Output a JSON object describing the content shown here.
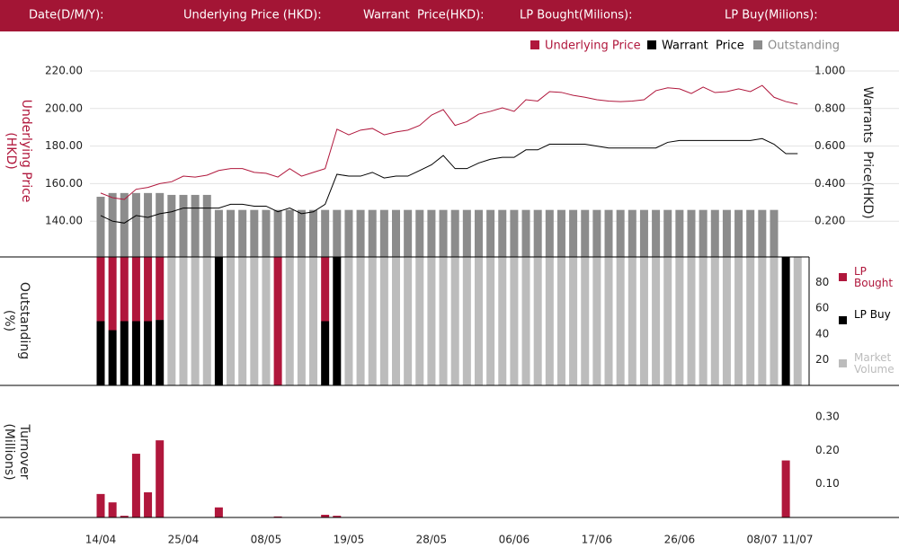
{
  "header": {
    "fields": [
      "Date(D/M/Y):",
      "Underlying Price (HKD):",
      "Warrant  Price(HKD):",
      "LP Bought(Milions):",
      "LP Buy(Milions):"
    ]
  },
  "chart_data": [
    {
      "type": "line",
      "ylabel": "Underlying Price (HKD)",
      "y2label": "Warrants  Price(HKD)",
      "ylim": [
        120,
        220
      ],
      "yticks": [
        {
          "value": 140,
          "label": "140.00"
        },
        {
          "value": 160,
          "label": "160.00"
        },
        {
          "value": 180,
          "label": "180.00"
        },
        {
          "value": 200,
          "label": "200.00"
        },
        {
          "value": 220,
          "label": "220.00"
        }
      ],
      "y2lim": [
        0,
        1
      ],
      "y2ticks": [
        {
          "value": 0.2,
          "label": "0.200"
        },
        {
          "value": 0.4,
          "label": "0.400"
        },
        {
          "value": 0.6,
          "label": "0.600"
        },
        {
          "value": 0.8,
          "label": "0.800"
        },
        {
          "value": 1,
          "label": "1.000"
        }
      ],
      "grid": true,
      "series": [
        {
          "name": "Underlying Price",
          "color": "#b0173c",
          "values": [
            155,
            152.5,
            151.6,
            157,
            158,
            160,
            161,
            164,
            163.5,
            164.5,
            167,
            168,
            168,
            166,
            165.5,
            163.5,
            168,
            164,
            166,
            168,
            189,
            186,
            188.5,
            189.4,
            186,
            187.5,
            188.5,
            191,
            196.5,
            199.4,
            191,
            193,
            197,
            198.5,
            200.4,
            198.5,
            204.7,
            204,
            209,
            208.6,
            207,
            206,
            204.7,
            204,
            203.7,
            204,
            204.7,
            209.5,
            211,
            210.5,
            208,
            211.4,
            208.5,
            209,
            210.5,
            209,
            212.3,
            206,
            203.7,
            202.3
          ]
        },
        {
          "name": "Warrant  Price",
          "color": "#000000",
          "axis": "y2",
          "values": [
            0.23,
            0.2,
            0.19,
            0.23,
            0.22,
            0.24,
            0.25,
            0.27,
            0.27,
            0.27,
            0.27,
            0.29,
            0.29,
            0.28,
            0.28,
            0.25,
            0.27,
            0.24,
            0.25,
            0.29,
            0.45,
            0.44,
            0.44,
            0.46,
            0.43,
            0.44,
            0.44,
            0.47,
            0.5,
            0.55,
            0.48,
            0.48,
            0.51,
            0.53,
            0.54,
            0.54,
            0.58,
            0.58,
            0.61,
            0.61,
            0.61,
            0.61,
            0.6,
            0.59,
            0.59,
            0.59,
            0.59,
            0.59,
            0.62,
            0.63,
            0.63,
            0.63,
            0.63,
            0.63,
            0.63,
            0.63,
            0.64,
            0.61,
            0.56,
            0.56
          ]
        },
        {
          "name": "Outstanding",
          "color": "#8c8c8c",
          "axis": "y2",
          "type": "bar",
          "values": [
            0.33,
            0.35,
            0.35,
            0.35,
            0.35,
            0.35,
            0.34,
            0.34,
            0.34,
            0.34,
            0.26,
            0.26,
            0.26,
            0.26,
            0.26,
            0.26,
            0.26,
            0.26,
            0.26,
            0.26,
            0.26,
            0.26,
            0.26,
            0.26,
            0.26,
            0.26,
            0.26,
            0.26,
            0.26,
            0.26,
            0.26,
            0.26,
            0.26,
            0.26,
            0.26,
            0.26,
            0.26,
            0.26,
            0.26,
            0.26,
            0.26,
            0.26,
            0.26,
            0.26,
            0.26,
            0.26,
            0.26,
            0.26,
            0.26,
            0.26,
            0.26,
            0.26,
            0.26,
            0.26,
            0.26,
            0.26,
            0.26,
            0.26,
            null,
            null
          ]
        }
      ]
    },
    {
      "type": "stacked_bar",
      "ylabel": "Outstanding (%)",
      "ylim": [
        0,
        100
      ],
      "yticks": [
        20,
        40,
        60,
        80
      ],
      "series": [
        {
          "name": "LP Bought",
          "color": "#b0173c",
          "values": [
            50,
            57,
            50,
            50,
            50,
            49,
            0,
            0,
            0,
            0,
            0,
            0,
            0,
            0,
            0,
            100,
            0,
            0,
            0,
            50,
            0,
            0,
            0,
            0,
            0,
            0,
            0,
            0,
            0,
            0,
            0,
            0,
            0,
            0,
            0,
            0,
            0,
            0,
            0,
            0,
            0,
            0,
            0,
            0,
            0,
            0,
            0,
            0,
            0,
            0,
            0,
            0,
            0,
            0,
            0,
            0,
            0,
            0,
            0,
            0
          ]
        },
        {
          "name": "LP Buy",
          "color": "#000000",
          "values": [
            50,
            43,
            50,
            50,
            50,
            51,
            0,
            0,
            0,
            0,
            100,
            0,
            0,
            0,
            0,
            0,
            0,
            0,
            0,
            50,
            100,
            0,
            0,
            0,
            0,
            0,
            0,
            0,
            0,
            0,
            0,
            0,
            0,
            0,
            0,
            0,
            0,
            0,
            0,
            0,
            0,
            0,
            0,
            0,
            0,
            0,
            0,
            0,
            0,
            0,
            0,
            0,
            0,
            0,
            0,
            0,
            0,
            0,
            100,
            0
          ]
        },
        {
          "name": "Market Volume",
          "color": "#bcbcbc",
          "values": [
            0,
            0,
            0,
            0,
            0,
            0,
            100,
            100,
            100,
            100,
            0,
            100,
            100,
            100,
            100,
            0,
            100,
            100,
            100,
            0,
            0,
            100,
            100,
            100,
            100,
            100,
            100,
            100,
            100,
            100,
            100,
            100,
            100,
            100,
            100,
            100,
            100,
            100,
            100,
            100,
            100,
            100,
            100,
            100,
            100,
            100,
            100,
            100,
            100,
            100,
            100,
            100,
            100,
            100,
            100,
            100,
            100,
            100,
            0,
            100
          ]
        }
      ]
    },
    {
      "type": "bar",
      "ylabel": "Turnover (Millions)",
      "ylim": [
        0,
        0.3
      ],
      "yticks": [
        {
          "value": 0.1,
          "label": "0.10"
        },
        {
          "value": 0.2,
          "label": "0.20"
        },
        {
          "value": 0.3,
          "label": "0.30"
        }
      ],
      "color": "#b0173c",
      "categories": [
        "14/04",
        null,
        null,
        null,
        null,
        null,
        null,
        "25/04",
        null,
        null,
        null,
        null,
        null,
        null,
        "08/05",
        null,
        null,
        null,
        null,
        null,
        null,
        "19/05",
        null,
        null,
        null,
        null,
        null,
        null,
        "28/05",
        null,
        null,
        null,
        null,
        null,
        null,
        "06/06",
        null,
        null,
        null,
        null,
        null,
        null,
        "17/06",
        null,
        null,
        null,
        null,
        null,
        null,
        "26/06",
        null,
        null,
        null,
        null,
        null,
        null,
        "08/07",
        null,
        null,
        "11/07"
      ],
      "values": [
        0.07,
        0.045,
        0.005,
        0.19,
        0.075,
        0.23,
        0,
        0,
        0,
        0,
        0.03,
        0,
        0,
        0,
        0,
        0.003,
        0,
        0,
        0,
        0.008,
        0.005,
        0,
        0,
        0,
        0,
        0,
        0,
        0,
        0,
        0,
        0,
        0,
        0,
        0,
        0,
        0,
        0,
        0,
        0,
        0,
        0,
        0,
        0,
        0,
        0,
        0,
        0,
        0,
        0,
        0,
        0,
        0,
        0,
        0,
        0,
        0,
        0,
        0,
        0.17,
        0
      ]
    }
  ]
}
